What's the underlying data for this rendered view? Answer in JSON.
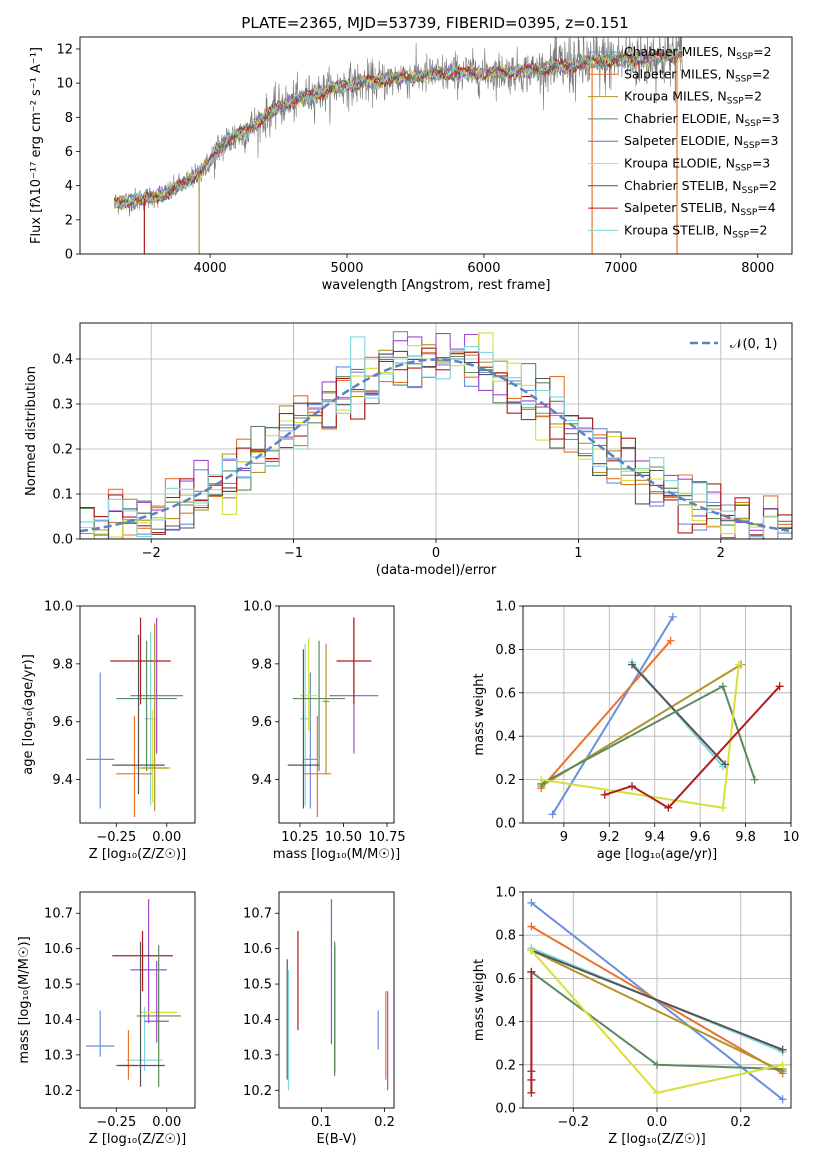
{
  "colors": {
    "c0": "#6b8ede",
    "c1": "#e8742c",
    "c2": "#b0952a",
    "c3": "#5b8a5e",
    "c4": "#a24bd0",
    "c5": "#d8df3a",
    "c6": "#555555",
    "c7": "#b01c1c",
    "c8": "#7fd6dc"
  },
  "chart_data": [
    {
      "id": "spectrum",
      "type": "line",
      "title": "PLATE=2365, MJD=53739, FIBERID=0395, z=0.151",
      "xlabel": "wavelength [Angstrom, rest frame]",
      "ylabel": "Flux [fλ10⁻¹⁷ erg cm⁻² s⁻¹ A⁻¹]",
      "xlim": [
        3050,
        8250
      ],
      "ylim": [
        0,
        12.7
      ],
      "xticks": [
        4000,
        5000,
        6000,
        7000,
        8000
      ],
      "yticks": [
        0,
        2,
        4,
        6,
        8,
        10,
        12
      ],
      "grid": false,
      "legend_position": "top-right",
      "continuum_x": [
        3300,
        3500,
        3700,
        3900,
        4000,
        4100,
        4300,
        4500,
        4700,
        5000,
        5200,
        5500,
        5800,
        6000,
        6300,
        6500,
        6700,
        6800,
        7000,
        7200,
        7500
      ],
      "continuum_y": [
        3.0,
        3.2,
        3.6,
        4.6,
        5.4,
        6.5,
        7.4,
        8.6,
        9.2,
        9.9,
        10.1,
        10.4,
        10.6,
        10.6,
        10.7,
        10.9,
        11.1,
        11.2,
        11.4,
        11.5,
        11.7
      ],
      "legend": [
        {
          "label": "Chabrier MILES, N",
          "sub": "SSP",
          "suffix": "=2",
          "color": "c0"
        },
        {
          "label": "Salpeter MILES, N",
          "sub": "SSP",
          "suffix": "=2",
          "color": "c1"
        },
        {
          "label": "Kroupa MILES, N",
          "sub": "SSP",
          "suffix": "=2",
          "color": "c2"
        },
        {
          "label": "Chabrier ELODIE, N",
          "sub": "SSP",
          "suffix": "=3",
          "color": "c3"
        },
        {
          "label": "Salpeter ELODIE, N",
          "sub": "SSP",
          "suffix": "=3",
          "color": "c4"
        },
        {
          "label": "Kroupa ELODIE, N",
          "sub": "SSP",
          "suffix": "=3",
          "color": "c5"
        },
        {
          "label": "Chabrier STELIB, N",
          "sub": "SSP",
          "suffix": "=2",
          "color": "c6"
        },
        {
          "label": "Salpeter STELIB, N",
          "sub": "SSP",
          "suffix": "=4",
          "color": "c7"
        },
        {
          "label": "Kroupa STELIB, N",
          "sub": "SSP",
          "suffix": "=2",
          "color": "c8"
        }
      ]
    },
    {
      "id": "residuals",
      "type": "line",
      "xlabel": "(data-model)/error",
      "ylabel": "Normed distribution",
      "xlim": [
        -2.5,
        2.5
      ],
      "ylim": [
        0,
        0.48
      ],
      "xticks": [
        -2,
        -1,
        0,
        1,
        2
      ],
      "yticks": [
        0.0,
        0.1,
        0.2,
        0.3,
        0.4
      ],
      "grid": true,
      "legend_position": "top-right",
      "legend": "𝒩(0, 1)",
      "bin_width": 0.1
    },
    {
      "id": "age_vs_Z",
      "type": "scatter",
      "xlabel": "Z [log₁₀(Z/Z☉)]",
      "ylabel": "age  [log₁₀(age/yr)]",
      "xlim": [
        -0.43,
        0.14
      ],
      "ylim": [
        9.25,
        10.0
      ],
      "xticks": [
        -0.25,
        0.0
      ],
      "xtick_labels": [
        "−0.25",
        "0.00"
      ],
      "yticks": [
        9.4,
        9.6,
        9.8,
        10.0
      ],
      "grid": false,
      "points": [
        {
          "x": -0.33,
          "y": 9.47,
          "xerr": 0.07,
          "yerr": [
            0.17,
            0.3
          ],
          "color": "c0"
        },
        {
          "x": -0.08,
          "y": 9.61,
          "xerr": 0.03,
          "yerr": [
            0.3,
            0.3
          ],
          "color": "c8"
        },
        {
          "x": -0.16,
          "y": 9.42,
          "xerr": 0.09,
          "yerr": [
            0.15,
            0.2
          ],
          "color": "c1"
        },
        {
          "x": -0.05,
          "y": 9.69,
          "xerr": 0.13,
          "yerr": [
            0.2,
            0.27
          ],
          "color": "c4"
        },
        {
          "x": -0.13,
          "y": 9.81,
          "xerr": 0.15,
          "yerr": [
            0.15,
            0.15
          ],
          "color": "c7"
        },
        {
          "x": -0.07,
          "y": 9.44,
          "xerr": 0.09,
          "yerr": [
            0.12,
            0.2
          ],
          "color": "c5"
        },
        {
          "x": -0.1,
          "y": 9.68,
          "xerr": 0.15,
          "yerr": [
            0.25,
            0.2
          ],
          "color": "c3"
        },
        {
          "x": -0.14,
          "y": 9.45,
          "xerr": 0.13,
          "yerr": [
            0.1,
            0.45
          ],
          "color": "c6"
        },
        {
          "x": -0.06,
          "y": 9.44,
          "xerr": 0.07,
          "yerr": [
            0.15,
            0.5
          ],
          "color": "c2"
        }
      ]
    },
    {
      "id": "age_vs_mass",
      "type": "scatter",
      "xlabel": "mass [log₁₀(M/M☉)]",
      "ylabel": "",
      "xlim": [
        10.13,
        10.79
      ],
      "ylim": [
        9.25,
        10.0
      ],
      "xticks": [
        10.25,
        10.5,
        10.75
      ],
      "xtick_labels": [
        "10.25",
        "10.50",
        "10.75"
      ],
      "yticks": [
        9.4,
        9.6,
        9.8,
        10.0
      ],
      "grid": false,
      "points": [
        {
          "x": 10.31,
          "y": 9.47,
          "xerr": 0.04,
          "yerr": [
            0.17,
            0.3
          ],
          "color": "c0"
        },
        {
          "x": 10.28,
          "y": 9.61,
          "xerr": 0.03,
          "yerr": [
            0.3,
            0.26
          ],
          "color": "c8"
        },
        {
          "x": 10.35,
          "y": 9.42,
          "xerr": 0.08,
          "yerr": [
            0.15,
            0.2
          ],
          "color": "c1"
        },
        {
          "x": 10.56,
          "y": 9.69,
          "xerr": 0.14,
          "yerr": [
            0.2,
            0.27
          ],
          "color": "c4"
        },
        {
          "x": 10.56,
          "y": 9.81,
          "xerr": 0.1,
          "yerr": [
            0.15,
            0.15
          ],
          "color": "c7"
        },
        {
          "x": 10.3,
          "y": 9.69,
          "xerr": 0.05,
          "yerr": [
            0.12,
            0.2
          ],
          "color": "c5"
        },
        {
          "x": 10.36,
          "y": 9.68,
          "xerr": 0.15,
          "yerr": [
            0.25,
            0.2
          ],
          "color": "c3"
        },
        {
          "x": 10.27,
          "y": 9.45,
          "xerr": 0.09,
          "yerr": [
            0.15,
            0.4
          ],
          "color": "c6"
        },
        {
          "x": 10.4,
          "y": 9.67,
          "xerr": 0.02,
          "yerr": [
            0.25,
            0.2
          ],
          "color": "c2"
        }
      ]
    },
    {
      "id": "weight_vs_age",
      "type": "line",
      "xlabel": "age  [log₁₀(age/yr)]",
      "ylabel": "mass weight",
      "xlim": [
        8.82,
        10.0
      ],
      "ylim": [
        0,
        1.0
      ],
      "xticks": [
        9.0,
        9.2,
        9.4,
        9.6,
        9.8,
        10.0
      ],
      "yticks": [
        0.0,
        0.2,
        0.4,
        0.6,
        0.8,
        1.0
      ],
      "grid": true,
      "series": [
        {
          "color": "c0",
          "x": [
            8.95,
            9.48
          ],
          "y": [
            0.04,
            0.95
          ]
        },
        {
          "color": "c1",
          "x": [
            8.9,
            9.47
          ],
          "y": [
            0.16,
            0.84
          ]
        },
        {
          "color": "c2",
          "x": [
            8.9,
            9.78
          ],
          "y": [
            0.17,
            0.73
          ]
        },
        {
          "color": "c8",
          "x": [
            9.3,
            9.7
          ],
          "y": [
            0.74,
            0.26
          ]
        },
        {
          "color": "c6",
          "x": [
            9.3,
            9.71
          ],
          "y": [
            0.73,
            0.27
          ]
        },
        {
          "color": "c3",
          "x": [
            8.9,
            9.7,
            9.84
          ],
          "y": [
            0.18,
            0.63,
            0.2
          ]
        },
        {
          "color": "c5",
          "x": [
            8.9,
            9.7,
            9.77
          ],
          "y": [
            0.2,
            0.07,
            0.73
          ]
        },
        {
          "color": "c7",
          "x": [
            9.18,
            9.3,
            9.46,
            9.95
          ],
          "y": [
            0.13,
            0.17,
            0.07,
            0.63
          ]
        }
      ]
    },
    {
      "id": "mass_vs_Z",
      "type": "scatter",
      "xlabel": "Z [log₁₀(Z/Z☉)]",
      "ylabel": "mass [log₁₀(M/M☉)]",
      "xlim": [
        -0.43,
        0.14
      ],
      "ylim": [
        10.15,
        10.76
      ],
      "xticks": [
        -0.25,
        0.0
      ],
      "xtick_labels": [
        "−0.25",
        "0.00"
      ],
      "yticks": [
        10.2,
        10.3,
        10.4,
        10.5,
        10.6,
        10.7
      ],
      "grid": false,
      "points": [
        {
          "x": -0.33,
          "y": 10.325,
          "xerr": 0.07,
          "yerr": [
            0.03,
            0.1
          ],
          "color": "c0"
        },
        {
          "x": -0.11,
          "y": 10.285,
          "xerr": 0.09,
          "yerr": [
            0.03,
            0.15
          ],
          "color": "c8"
        },
        {
          "x": -0.19,
          "y": 10.27,
          "xerr": 0.04,
          "yerr": [
            0.04,
            0.1
          ],
          "color": "c1"
        },
        {
          "x": -0.09,
          "y": 10.54,
          "xerr": 0.09,
          "yerr": [
            0.15,
            0.2
          ],
          "color": "c4"
        },
        {
          "x": -0.12,
          "y": 10.58,
          "xerr": 0.15,
          "yerr": [
            0.1,
            0.07
          ],
          "color": "c7"
        },
        {
          "x": -0.04,
          "y": 10.42,
          "xerr": 0.09,
          "yerr": [
            0.12,
            0.1
          ],
          "color": "c5"
        },
        {
          "x": -0.04,
          "y": 10.41,
          "xerr": 0.11,
          "yerr": [
            0.2,
            0.2
          ],
          "color": "c3"
        },
        {
          "x": -0.13,
          "y": 10.27,
          "xerr": 0.12,
          "yerr": [
            0.06,
            0.35
          ],
          "color": "c6"
        },
        {
          "x": -0.05,
          "y": 10.395,
          "xerr": 0.06,
          "yerr": [
            0.06,
            0.17
          ],
          "color": "c4"
        }
      ]
    },
    {
      "id": "mass_vs_ebv",
      "type": "scatter",
      "xlabel": "E(B-V)",
      "ylabel": "",
      "xlim": [
        0.033,
        0.215
      ],
      "ylim": [
        10.15,
        10.76
      ],
      "xticks": [
        0.1,
        0.2
      ],
      "xtick_labels": [
        "0.1",
        "0.2"
      ],
      "yticks": [
        10.2,
        10.3,
        10.4,
        10.5,
        10.6,
        10.7
      ],
      "grid": false,
      "points": [
        {
          "x": 0.046,
          "y": 10.37,
          "yerr": [
            0.14,
            0.2
          ],
          "color": "c6"
        },
        {
          "x": 0.048,
          "y": 10.37,
          "yerr": [
            0.17,
            0.17
          ],
          "color": "c8"
        },
        {
          "x": 0.063,
          "y": 10.51,
          "yerr": [
            0.14,
            0.14
          ],
          "color": "c7"
        },
        {
          "x": 0.116,
          "y": 10.53,
          "yerr": [
            0.2,
            0.21
          ],
          "color": "c4"
        },
        {
          "x": 0.122,
          "y": 10.43,
          "yerr": [
            0.18,
            0.18
          ],
          "color": "c5"
        },
        {
          "x": 0.121,
          "y": 10.44,
          "yerr": [
            0.2,
            0.18
          ],
          "color": "c3"
        },
        {
          "x": 0.19,
          "y": 10.365,
          "yerr": [
            0.05,
            0.06
          ],
          "color": "c0"
        },
        {
          "x": 0.202,
          "y": 10.33,
          "yerr": [
            0.1,
            0.15
          ],
          "color": "c1"
        },
        {
          "x": 0.205,
          "y": 10.33,
          "yerr": [
            0.13,
            0.15
          ],
          "color": "c4"
        }
      ]
    },
    {
      "id": "weight_vs_Z",
      "type": "line",
      "xlabel": "Z [log₁₀(Z/Z☉)]",
      "ylabel": "mass weight",
      "xlim": [
        -0.32,
        0.32
      ],
      "ylim": [
        0,
        1.0
      ],
      "xticks": [
        -0.2,
        0.0,
        0.2
      ],
      "xtick_labels": [
        "−0.2",
        "0.0",
        "0.2"
      ],
      "yticks": [
        0.0,
        0.2,
        0.4,
        0.6,
        0.8,
        1.0
      ],
      "grid": true,
      "series": [
        {
          "color": "c0",
          "x": [
            -0.3,
            0.3
          ],
          "y": [
            0.95,
            0.04
          ]
        },
        {
          "color": "c1",
          "x": [
            -0.3,
            0.3
          ],
          "y": [
            0.84,
            0.16
          ]
        },
        {
          "color": "c2",
          "x": [
            -0.3,
            0.3
          ],
          "y": [
            0.73,
            0.17
          ]
        },
        {
          "color": "c8",
          "x": [
            -0.3,
            0.3
          ],
          "y": [
            0.74,
            0.26
          ]
        },
        {
          "color": "c6",
          "x": [
            -0.3,
            0.3
          ],
          "y": [
            0.73,
            0.27
          ]
        },
        {
          "color": "c3",
          "x": [
            -0.3,
            0.0,
            0.3
          ],
          "y": [
            0.63,
            0.2,
            0.18
          ]
        },
        {
          "color": "c5",
          "x": [
            -0.3,
            0.0,
            0.3
          ],
          "y": [
            0.73,
            0.07,
            0.2
          ]
        },
        {
          "color": "c7",
          "x": [
            -0.3,
            -0.3,
            -0.3,
            -0.3
          ],
          "y": [
            0.63,
            0.17,
            0.13,
            0.07
          ]
        }
      ]
    }
  ]
}
